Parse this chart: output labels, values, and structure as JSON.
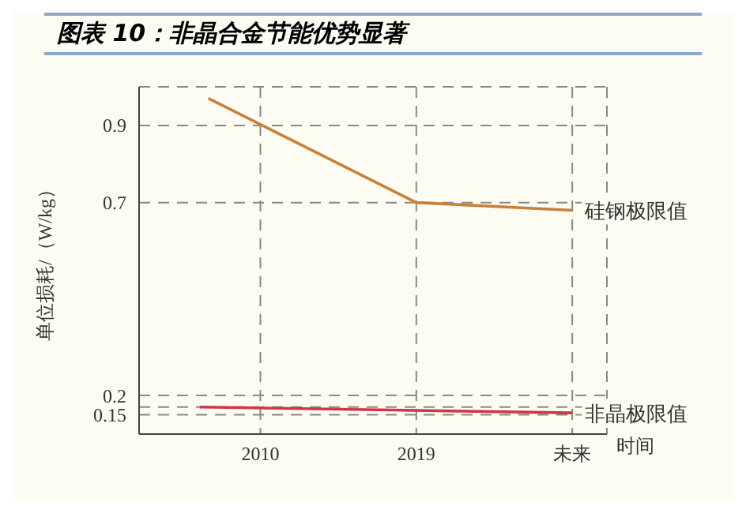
{
  "chart_data": {
    "type": "line",
    "title": "图表 10：非晶合金节能优势显著",
    "xlabel": "时间",
    "ylabel": "单位损耗/（W/kg）",
    "xlim": [
      2003,
      2030
    ],
    "xticks": [
      2010,
      2019,
      {
        "value": 2028,
        "label": "未来"
      }
    ],
    "ylim": [
      0.1,
      1.0
    ],
    "yticks": [
      0.15,
      {
        "value": 0.17,
        "label": null
      },
      0.2,
      0.7,
      0.9
    ],
    "grid": true,
    "legend": false,
    "marker": "none",
    "line_style": "solid",
    "series": [
      {
        "name": "硅钢极限值",
        "color": "#c8803a",
        "x": [
          2007,
          2019,
          2028
        ],
        "values": [
          0.97,
          0.7,
          0.68
        ]
      },
      {
        "name": "非晶极限值",
        "color": "#d0364a",
        "x": [
          2006.5,
          2028
        ],
        "values": [
          0.17,
          0.155
        ]
      }
    ]
  }
}
